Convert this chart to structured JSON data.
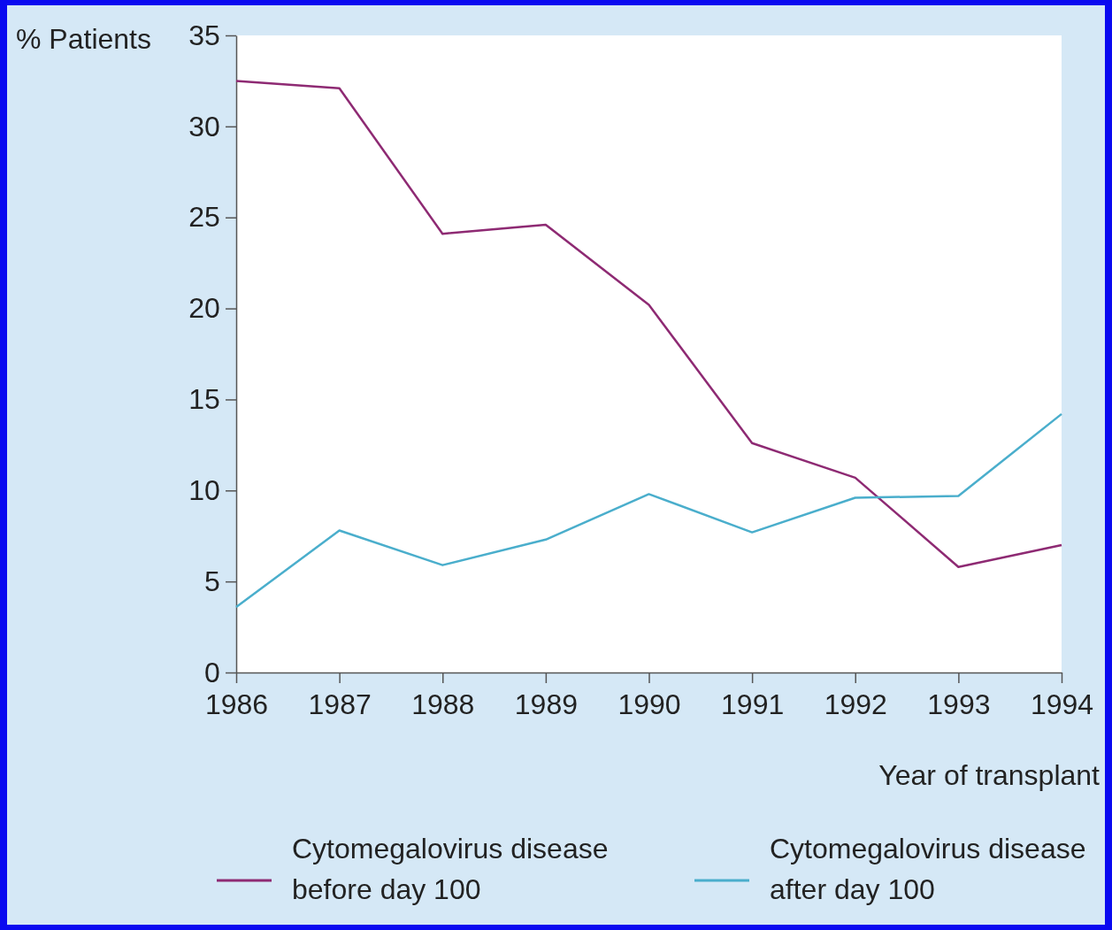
{
  "chart_data": {
    "type": "line",
    "xlabel": "Year of transplant",
    "ylabel": "% Patients",
    "x": [
      1986,
      1987,
      1988,
      1989,
      1990,
      1991,
      1992,
      1993,
      1994
    ],
    "xlim": [
      1986,
      1994
    ],
    "xticks": [
      1986,
      1987,
      1988,
      1989,
      1990,
      1991,
      1992,
      1993,
      1994
    ],
    "ylim": [
      0,
      35
    ],
    "yticks": [
      0,
      5,
      10,
      15,
      20,
      25,
      30,
      35
    ],
    "series": [
      {
        "name": "Cytomegalovirus disease before day 100",
        "color": "#8e2a73",
        "values": [
          32.5,
          32.1,
          24.1,
          24.6,
          20.2,
          12.6,
          10.7,
          5.8,
          7.0
        ]
      },
      {
        "name": "Cytomegalovirus disease after day 100",
        "color": "#4aaecc",
        "values": [
          3.6,
          7.8,
          5.9,
          7.3,
          9.8,
          7.7,
          9.6,
          9.7,
          14.2
        ]
      }
    ],
    "grid": false,
    "legend": "bottom",
    "marker": "none",
    "line_style": "solid"
  }
}
